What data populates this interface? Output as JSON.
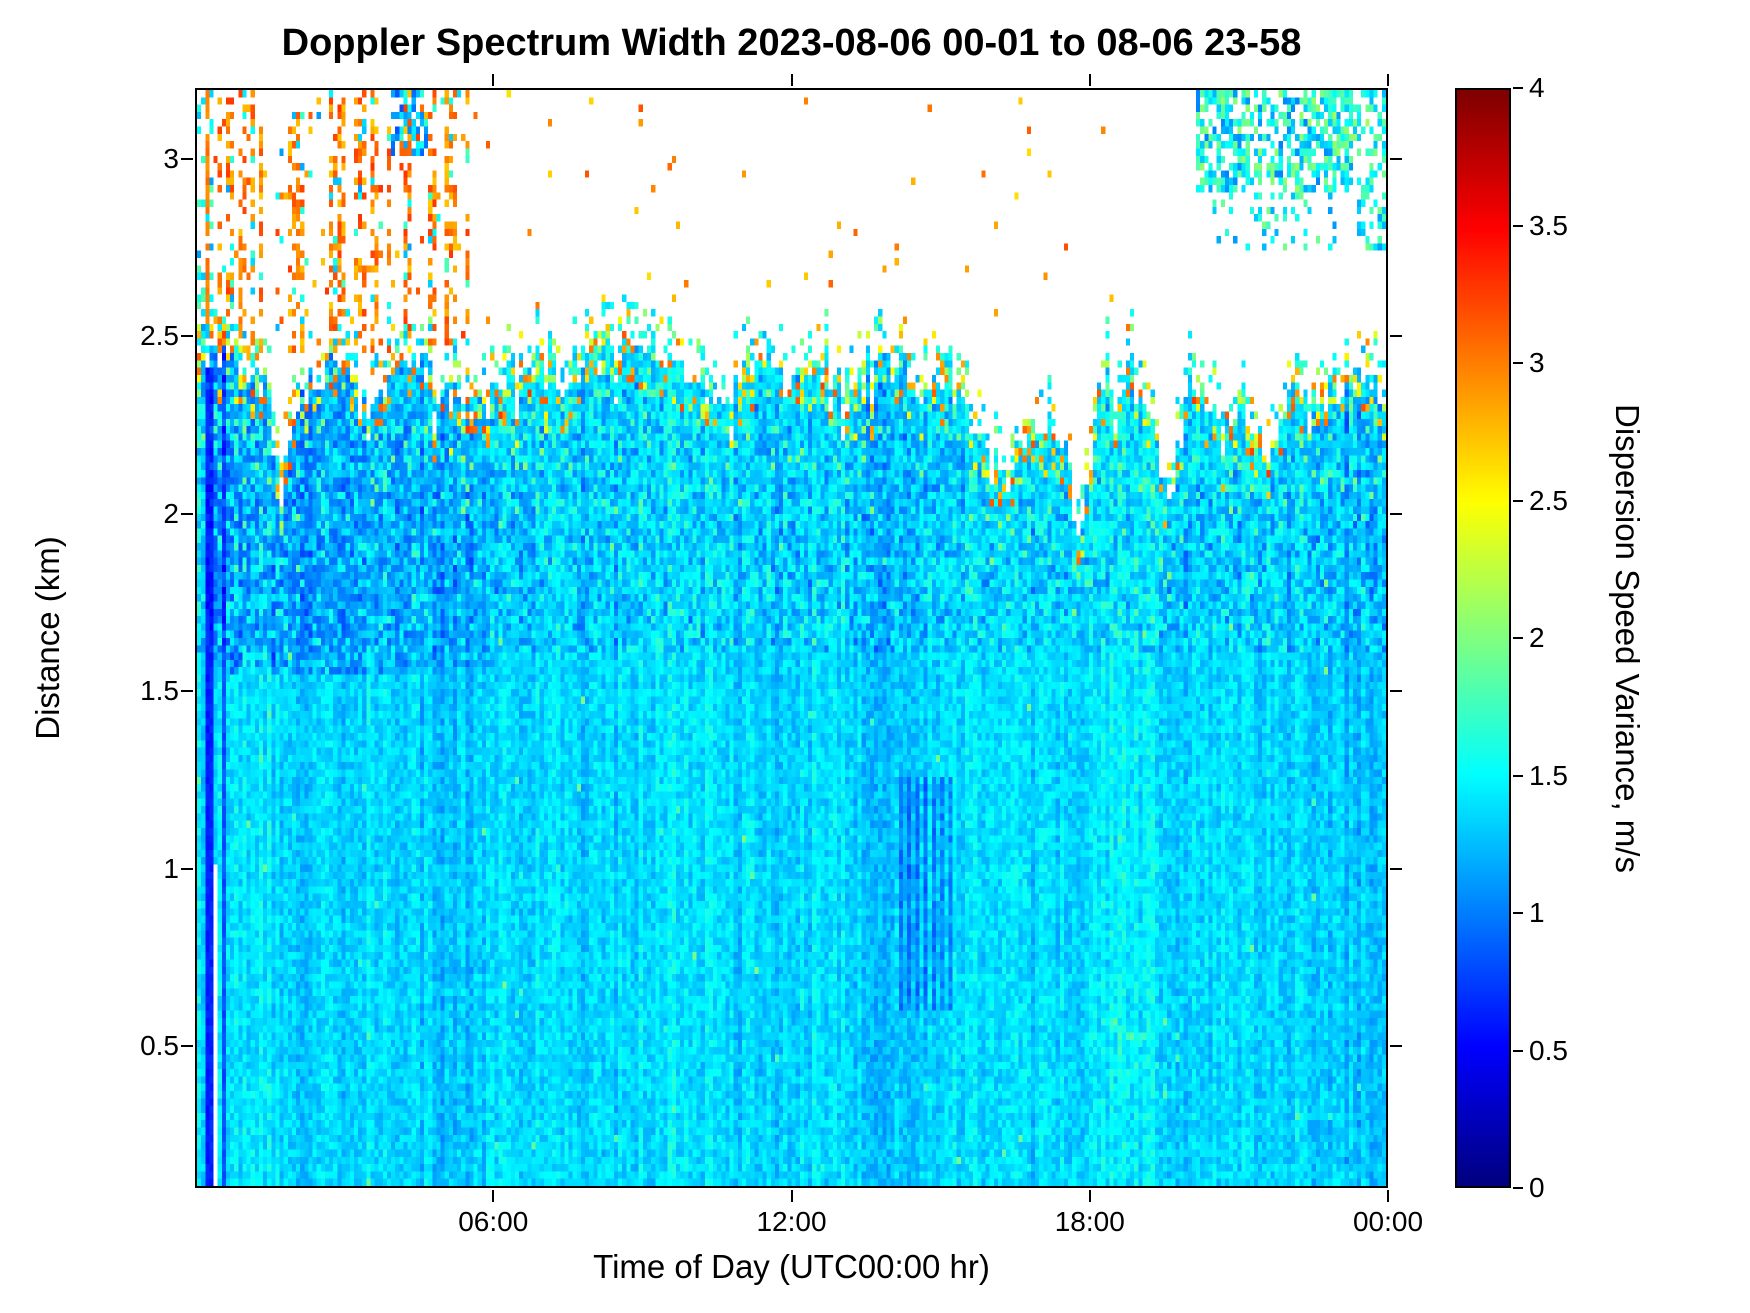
{
  "page": {
    "background": "#ffffff",
    "axis_color": "#000000"
  },
  "chart_data": {
    "type": "heatmap",
    "title": "Doppler Spectrum Width 2023-08-06 00-01 to 08-06 23-58",
    "xlabel": "Time of Day (UTC00:00 hr)",
    "ylabel": "Distance (km)",
    "colorbar_label": "Dispersion Speed Variance, m/s",
    "colormap": "jet",
    "grid_lines": "off",
    "x_range_hours": [
      0,
      24
    ],
    "y_range_km": [
      0.1,
      3.2
    ],
    "value_range": [
      0,
      4
    ],
    "x_ticks": [
      {
        "hour": 6,
        "label": "06:00"
      },
      {
        "hour": 12,
        "label": "12:00"
      },
      {
        "hour": 18,
        "label": "18:00"
      },
      {
        "hour": 24,
        "label": "00:00"
      }
    ],
    "y_ticks": [
      {
        "value": 0.5,
        "label": "0.5"
      },
      {
        "value": 1,
        "label": "1"
      },
      {
        "value": 1.5,
        "label": "1.5"
      },
      {
        "value": 2,
        "label": "2"
      },
      {
        "value": 2.5,
        "label": "2.5"
      },
      {
        "value": 3,
        "label": "3"
      }
    ],
    "colorbar_ticks": [
      {
        "value": 0,
        "label": "0"
      },
      {
        "value": 0.5,
        "label": "0.5"
      },
      {
        "value": 1,
        "label": "1"
      },
      {
        "value": 1.5,
        "label": "1.5"
      },
      {
        "value": 2,
        "label": "2"
      },
      {
        "value": 2.5,
        "label": "2.5"
      },
      {
        "value": 3,
        "label": "3"
      },
      {
        "value": 3.5,
        "label": "3.5"
      },
      {
        "value": 4,
        "label": "4"
      }
    ],
    "grid": {
      "cols": 288,
      "rows": 150
    },
    "seed": 20230806,
    "field": {
      "background_mean": 1.35,
      "background_noise": 0.17,
      "column_streak_amp": 0.11,
      "top_jitter": 0.05,
      "echo_top_km": [
        [
          0,
          2.48
        ],
        [
          0.8,
          2.44
        ],
        [
          1.4,
          2.35
        ],
        [
          1.7,
          2.05
        ],
        [
          2.0,
          2.3
        ],
        [
          2.7,
          2.42
        ],
        [
          3.5,
          2.35
        ],
        [
          4.3,
          2.45
        ],
        [
          5,
          2.35
        ],
        [
          5.8,
          2.3
        ],
        [
          6.5,
          2.42
        ],
        [
          7.2,
          2.36
        ],
        [
          8,
          2.42
        ],
        [
          8.7,
          2.5
        ],
        [
          9.3,
          2.42
        ],
        [
          10,
          2.38
        ],
        [
          10.7,
          2.32
        ],
        [
          11.4,
          2.45
        ],
        [
          12,
          2.36
        ],
        [
          12.7,
          2.42
        ],
        [
          13.3,
          2.3
        ],
        [
          13.8,
          2.45
        ],
        [
          14.5,
          2.35
        ],
        [
          15.2,
          2.38
        ],
        [
          15.8,
          2.2
        ],
        [
          16.4,
          2.15
        ],
        [
          17,
          2.25
        ],
        [
          17.5,
          2.2
        ],
        [
          17.8,
          1.9
        ],
        [
          18.2,
          2.35
        ],
        [
          18.8,
          2.38
        ],
        [
          19.3,
          2.3
        ],
        [
          19.6,
          2.0
        ],
        [
          20,
          2.35
        ],
        [
          20.6,
          2.3
        ],
        [
          21.2,
          2.28
        ],
        [
          21.6,
          2.1
        ],
        [
          22.1,
          2.38
        ],
        [
          22.8,
          2.33
        ],
        [
          23.4,
          2.38
        ],
        [
          24,
          2.36
        ]
      ],
      "edge_speckle": {
        "depth_km": 0.1,
        "prob": 0.22,
        "value_range": [
          1.7,
          3.3
        ]
      },
      "dark_patch": {
        "t_range": [
          0.3,
          6.2
        ],
        "y_range": [
          1.55,
          2.5
        ],
        "strength": 0.5,
        "prob": 0.55
      },
      "dark_columns": [
        {
          "t_range": [
            0.18,
            0.3
          ],
          "factor": 0.45
        },
        {
          "t_range": [
            0.5,
            0.58
          ],
          "factor": 0.62
        }
      ],
      "white_columns": [
        {
          "t_range": [
            0.34,
            0.4
          ],
          "y_range": [
            0.1,
            1.0
          ]
        }
      ],
      "striped_region": {
        "t_range": [
          14.2,
          15.3
        ],
        "y_range": [
          0.6,
          1.25
        ],
        "delta": 0.3
      },
      "green_patch": {
        "t_range": [
          18.4,
          19.6
        ],
        "y_range": [
          0.35,
          0.6
        ],
        "prob": 0.15,
        "value_range": [
          1.5,
          1.9
        ]
      },
      "upper_speckles": [
        {
          "t_range": [
            0,
            0.35
          ],
          "y_range": [
            2.45,
            3.2
          ],
          "prob": 0.3,
          "value_range": [
            1.1,
            1.9
          ],
          "gated": false
        },
        {
          "t_range": [
            0.35,
            5.5
          ],
          "y_range": [
            2.45,
            3.2
          ],
          "prob": 0.4,
          "value_range": [
            2.7,
            3.3
          ],
          "gated": true
        },
        {
          "t_range": [
            0.35,
            5.5
          ],
          "y_range": [
            2.45,
            3.2
          ],
          "prob": 0.1,
          "value_range": [
            1.1,
            1.8
          ],
          "gated": true
        },
        {
          "t_range": [
            5.5,
            20
          ],
          "y_range": [
            2.5,
            3.2
          ],
          "prob": 0.006,
          "value_range": [
            2.6,
            3.2
          ],
          "gated": false
        },
        {
          "t_range": [
            3.9,
            4.7
          ],
          "y_range": [
            3.02,
            3.2
          ],
          "prob": 0.5,
          "value_range": [
            0.8,
            1.7
          ],
          "gated": false
        },
        {
          "t_range": [
            20.2,
            23.3
          ],
          "y_range": [
            2.92,
            3.2
          ],
          "prob": 0.6,
          "value_range": [
            1.0,
            2.1
          ],
          "gated": false
        },
        {
          "t_range": [
            20.5,
            23.0
          ],
          "y_range": [
            2.75,
            2.95
          ],
          "prob": 0.18,
          "value_range": [
            1.1,
            2.0
          ],
          "gated": false
        },
        {
          "t_range": [
            22.8,
            24
          ],
          "y_range": [
            3.05,
            3.2
          ],
          "prob": 0.5,
          "value_range": [
            1.2,
            2.2
          ],
          "gated": false
        },
        {
          "t_range": [
            23.45,
            24
          ],
          "y_range": [
            2.75,
            3.05
          ],
          "prob": 0.45,
          "value_range": [
            1.1,
            2.0
          ],
          "gated": false
        }
      ],
      "orange_streaks": [
        {
          "t": 0.24,
          "y_range": [
            2.5,
            3.2
          ],
          "prob": 0.9,
          "value": 3.0
        },
        {
          "t": 0.85,
          "y_range": [
            2.5,
            3.05
          ],
          "prob": 0.6,
          "value": 3.0
        },
        {
          "t": 2.05,
          "y_range": [
            2.55,
            3.1
          ],
          "prob": 0.55,
          "value": 3.0
        }
      ]
    }
  }
}
